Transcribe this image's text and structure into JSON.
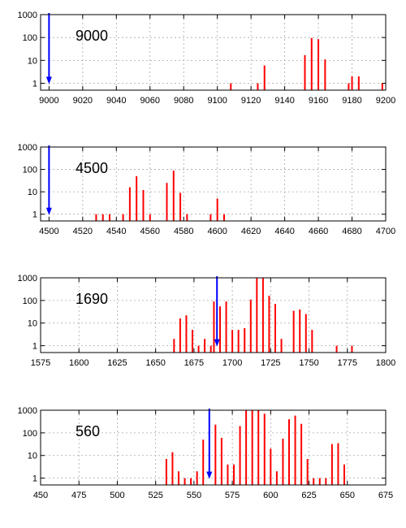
{
  "chart_data": [
    {
      "type": "bar",
      "label": "9000",
      "marker": 9000,
      "marker_color": "#0000ff",
      "bar_color": "#ff0000",
      "grid": true,
      "yscale": "log",
      "ylim": [
        0.5,
        1000
      ],
      "yticks": [
        1,
        10,
        100,
        1000
      ],
      "xlim": [
        8995,
        9200
      ],
      "xticks": [
        9000,
        9020,
        9040,
        9060,
        9080,
        9100,
        9120,
        9140,
        9160,
        9180,
        9200
      ],
      "x": [
        9108,
        9124,
        9128,
        9152,
        9156,
        9160,
        9164,
        9178,
        9180,
        9184,
        9198
      ],
      "values": [
        1,
        1,
        6,
        17,
        95,
        85,
        11,
        1,
        2,
        2,
        1
      ]
    },
    {
      "type": "bar",
      "label": "4500",
      "marker": 4500,
      "marker_color": "#0000ff",
      "bar_color": "#ff0000",
      "grid": true,
      "yscale": "log",
      "ylim": [
        0.5,
        1000
      ],
      "yticks": [
        1,
        10,
        100,
        1000
      ],
      "xlim": [
        4495,
        4700
      ],
      "xticks": [
        4500,
        4520,
        4540,
        4560,
        4580,
        4600,
        4620,
        4640,
        4660,
        4680,
        4700
      ],
      "x": [
        4528,
        4532,
        4536,
        4544,
        4548,
        4552,
        4556,
        4560,
        4570,
        4574,
        4578,
        4582,
        4596,
        4600,
        4604
      ],
      "values": [
        1,
        1,
        1,
        1,
        16,
        50,
        12,
        1,
        25,
        88,
        9,
        1,
        1,
        5,
        1
      ]
    },
    {
      "type": "bar",
      "label": "1690",
      "marker": 1690,
      "marker_color": "#0000ff",
      "bar_color": "#ff0000",
      "grid": true,
      "yscale": "log",
      "ylim": [
        0.5,
        1000
      ],
      "yticks": [
        1,
        10,
        100,
        1000
      ],
      "xlim": [
        1575,
        1800
      ],
      "xticks": [
        1575,
        1600,
        1625,
        1650,
        1675,
        1700,
        1725,
        1750,
        1775,
        1800
      ],
      "x": [
        1662,
        1666,
        1670,
        1674,
        1678,
        1682,
        1686,
        1688,
        1692,
        1696,
        1700,
        1704,
        1708,
        1712,
        1716,
        1720,
        1724,
        1728,
        1732,
        1740,
        1744,
        1748,
        1752,
        1768,
        1778
      ],
      "values": [
        2,
        16,
        22,
        5,
        1,
        2,
        1,
        90,
        55,
        90,
        5,
        5,
        6,
        110,
        1000,
        1000,
        160,
        70,
        2,
        35,
        40,
        25,
        5,
        1,
        1
      ]
    },
    {
      "type": "bar",
      "label": "560",
      "marker": 560,
      "marker_color": "#0000ff",
      "bar_color": "#ff0000",
      "grid": true,
      "yscale": "log",
      "ylim": [
        0.5,
        1000
      ],
      "yticks": [
        1,
        10,
        100,
        1000
      ],
      "xlim": [
        450,
        675
      ],
      "xticks": [
        450,
        475,
        500,
        525,
        550,
        575,
        600,
        625,
        650,
        675
      ],
      "x": [
        532,
        536,
        540,
        544,
        548,
        552,
        556,
        564,
        568,
        572,
        576,
        580,
        584,
        588,
        592,
        596,
        600,
        604,
        608,
        612,
        616,
        620,
        624,
        628,
        632,
        636,
        640,
        644,
        648
      ],
      "values": [
        7,
        14,
        2,
        1,
        1,
        2,
        50,
        230,
        60,
        4,
        4,
        200,
        1000,
        1000,
        1000,
        700,
        20,
        2,
        55,
        400,
        580,
        250,
        7,
        1,
        1,
        1,
        32,
        35,
        4
      ]
    }
  ]
}
